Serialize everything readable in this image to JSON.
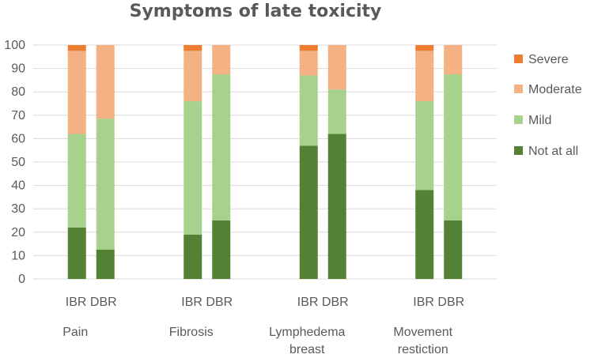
{
  "chart_data": {
    "type": "bar",
    "stacked": true,
    "title": "Symptoms of late toxicity",
    "xlabel": "",
    "ylabel": "",
    "ylim": [
      0,
      100
    ],
    "yticks": [
      0,
      10,
      20,
      30,
      40,
      50,
      60,
      70,
      80,
      90,
      100
    ],
    "grid": true,
    "legend_position": "right",
    "groups": [
      {
        "name": [
          "Pain"
        ],
        "bars": [
          "IBR",
          "DBR"
        ]
      },
      {
        "name": [
          "Fibrosis"
        ],
        "bars": [
          "IBR",
          "DBR"
        ]
      },
      {
        "name": [
          "Lymphedema",
          "breast"
        ],
        "bars": [
          "IBR",
          "DBR"
        ]
      },
      {
        "name": [
          "Movement",
          "restiction"
        ],
        "bars": [
          "IBR",
          "DBR"
        ]
      }
    ],
    "categories": [
      "Pain IBR",
      "Pain DBR",
      "Fibrosis IBR",
      "Fibrosis DBR",
      "Lymphedema breast IBR",
      "Lymphedema breast DBR",
      "Movement restiction IBR",
      "Movement restiction DBR"
    ],
    "series": [
      {
        "name": "Not at all",
        "color": "#548235",
        "values": [
          22,
          12.5,
          19,
          25,
          57,
          62,
          38,
          25
        ]
      },
      {
        "name": "Mild",
        "color": "#a9d18e",
        "values": [
          40,
          56,
          57,
          62.5,
          30,
          19,
          38,
          62.5
        ]
      },
      {
        "name": "Moderate",
        "color": "#f4b183",
        "values": [
          35.5,
          31.5,
          21.5,
          12.5,
          10.5,
          19,
          21.5,
          12.5
        ]
      },
      {
        "name": "Severe",
        "color": "#ed7d31",
        "values": [
          2.5,
          0,
          2.5,
          0,
          2.5,
          0,
          2.5,
          0
        ]
      }
    ],
    "legend_order": [
      "Severe",
      "Moderate",
      "Mild",
      "Not at all"
    ]
  }
}
